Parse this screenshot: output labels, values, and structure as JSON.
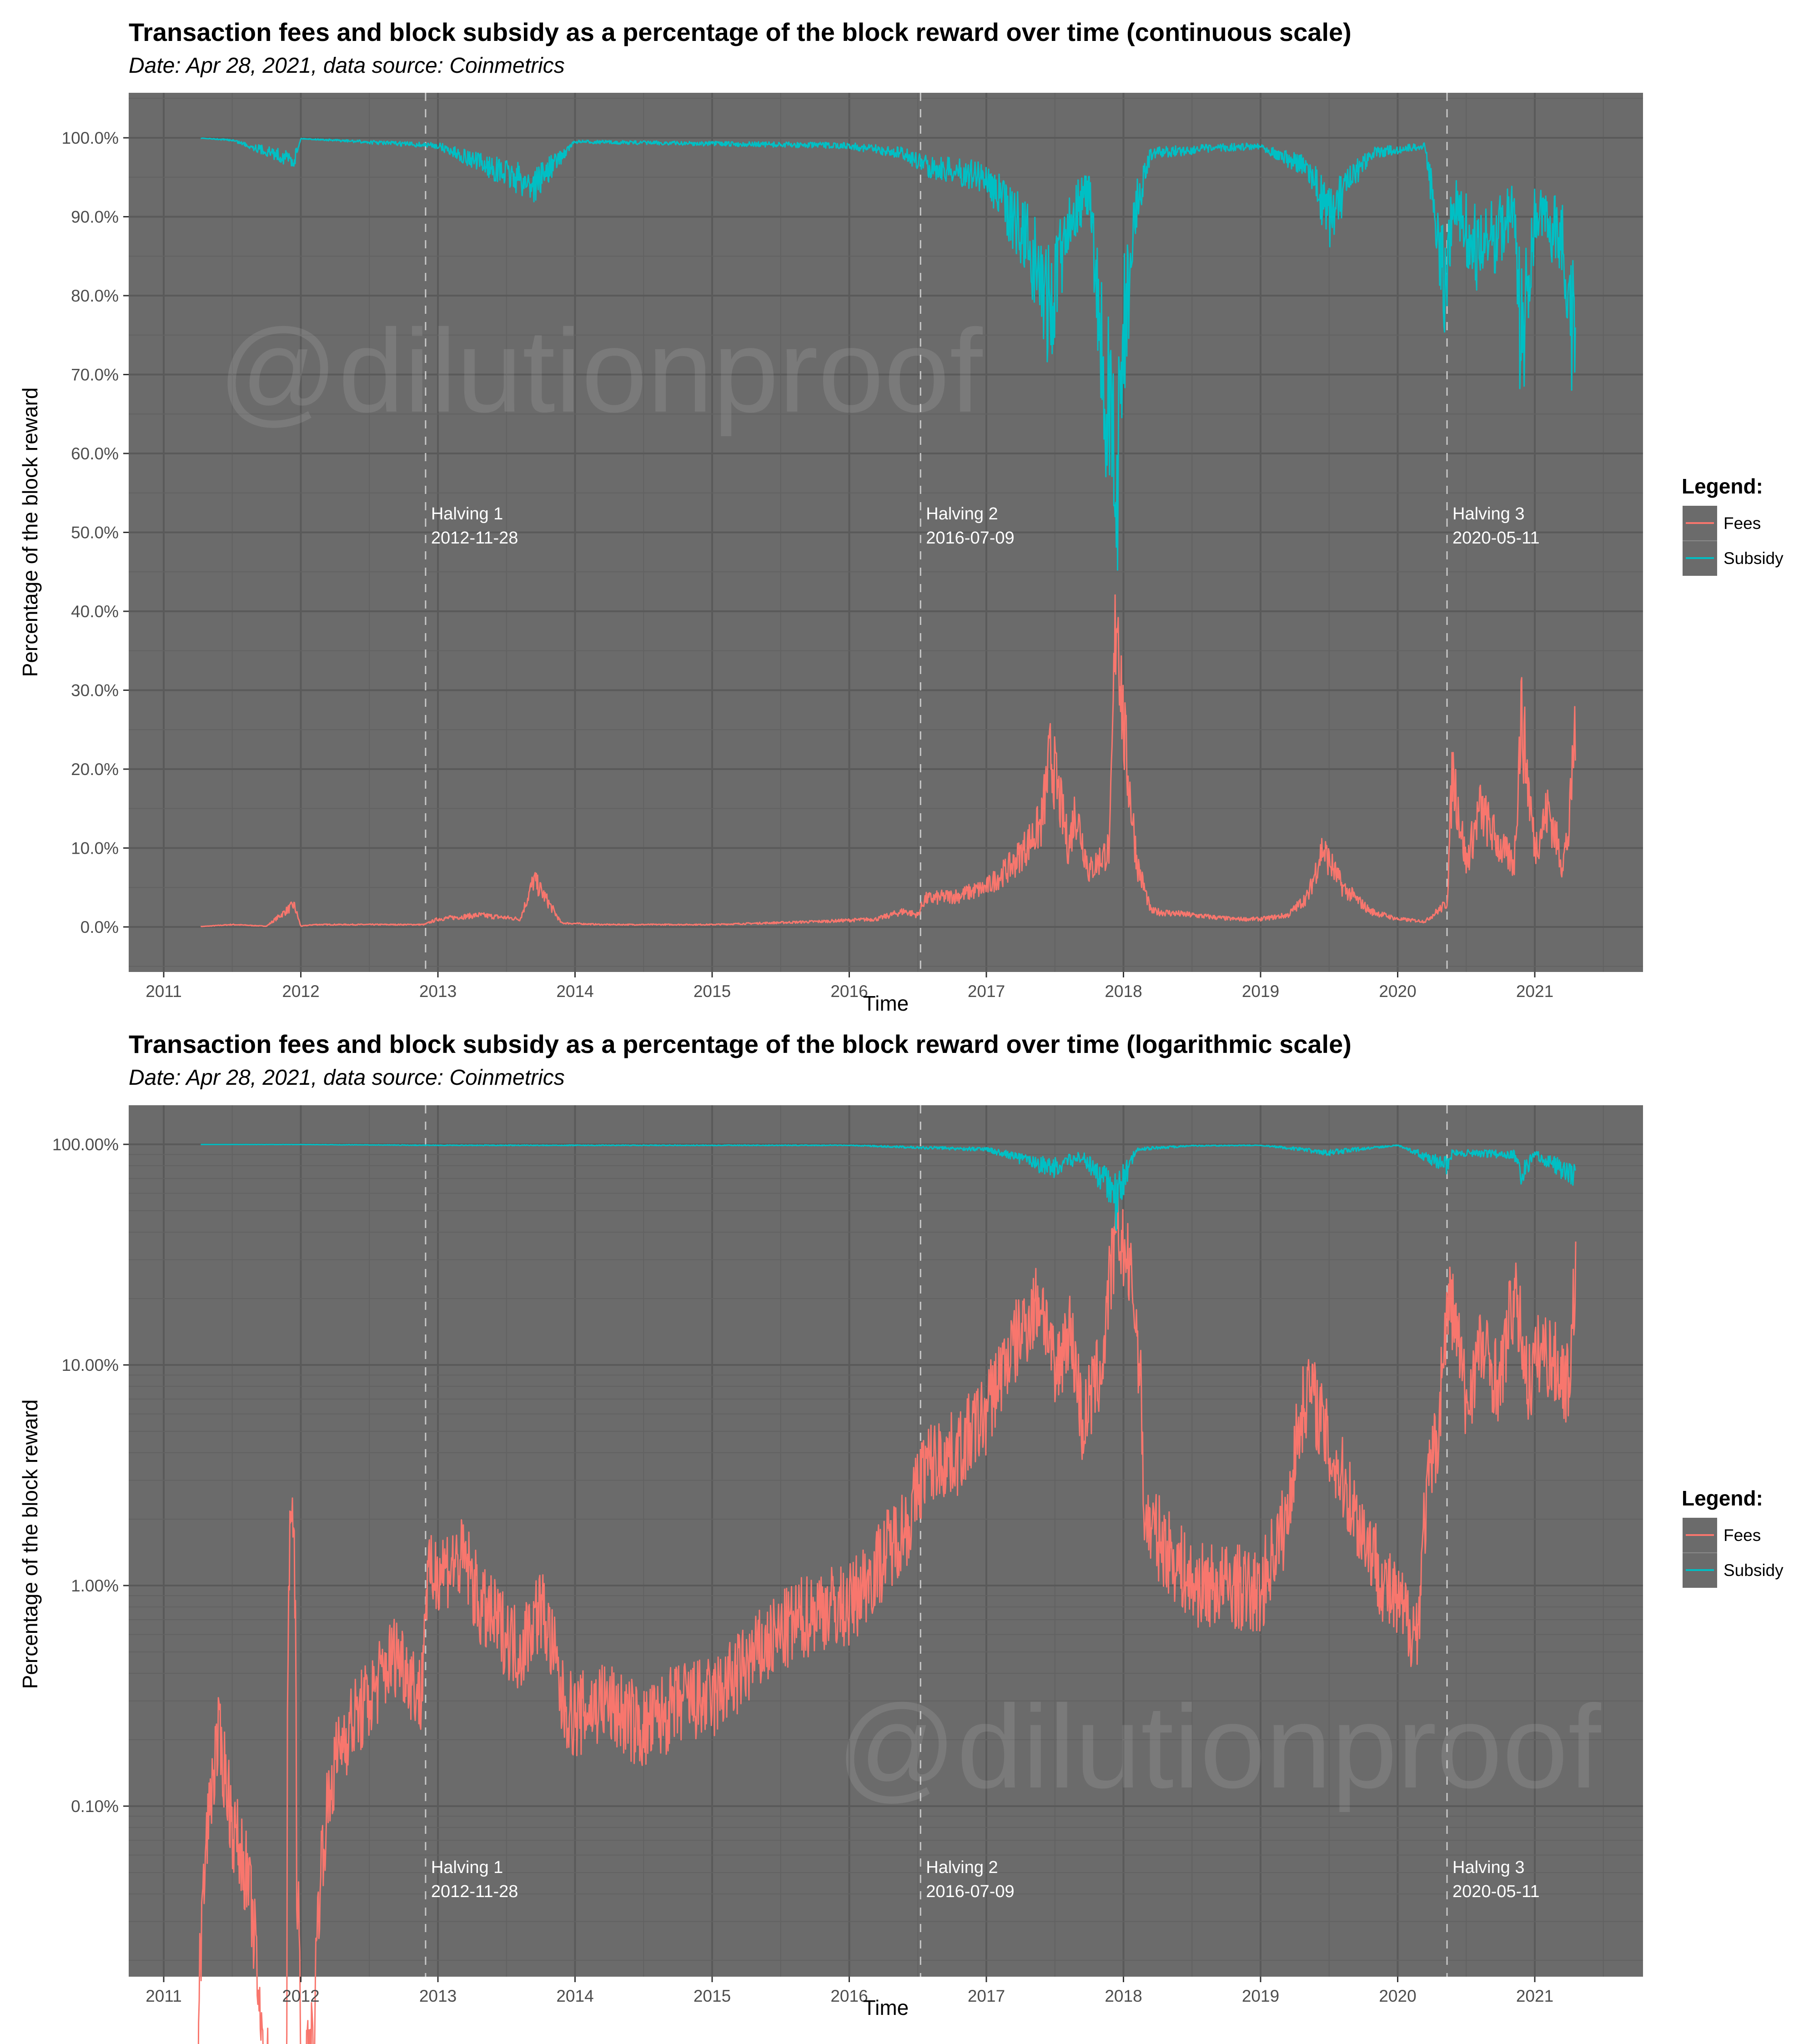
{
  "colors": {
    "panel_bg": "#6b6b6b",
    "grid_major": "#5a5a5a",
    "grid_minor": "#626262",
    "fees": "#f8766d",
    "subsidy": "#00bfc4",
    "halving_line": "#c8c8c8",
    "annotation_text": "#ffffff"
  },
  "watermark": "@dilutionproof",
  "legend": {
    "title": "Legend:",
    "items": [
      {
        "label": "Fees",
        "color": "#f8766d"
      },
      {
        "label": "Subsidy",
        "color": "#00bfc4"
      }
    ]
  },
  "chart_data": [
    {
      "type": "line",
      "title": "Transaction fees and block subsidy as a percentage of the block reward over time (continuous scale)",
      "subtitle": "Date: Apr 28, 2021, data source: Coinmetrics",
      "xlabel": "Time",
      "ylabel": "Percentage of the block reward",
      "x_ticks": [
        "2011",
        "2012",
        "2013",
        "2014",
        "2015",
        "2016",
        "2017",
        "2018",
        "2019",
        "2020",
        "2021"
      ],
      "y_ticks": [
        "0.0%",
        "10.0%",
        "20.0%",
        "30.0%",
        "40.0%",
        "50.0%",
        "60.0%",
        "70.0%",
        "80.0%",
        "90.0%",
        "100.0%"
      ],
      "y_scale": "linear",
      "ylim": [
        -5,
        105
      ],
      "xlim": [
        2010.75,
        2021.8
      ],
      "grid": true,
      "legend_position": "right",
      "annotations": [
        {
          "label": "Halving 1",
          "date": "2012-11-28",
          "x": 2012.91
        },
        {
          "label": "Halving 2",
          "date": "2016-07-09",
          "x": 2016.52
        },
        {
          "label": "Halving 3",
          "date": "2020-05-11",
          "x": 2020.36
        }
      ],
      "series": [
        {
          "name": "Fees",
          "x": [
            2011.27,
            2011.5,
            2011.75,
            2011.95,
            2012.0,
            2012.1,
            2012.5,
            2012.9,
            2013.0,
            2013.3,
            2013.6,
            2013.7,
            2013.9,
            2014.2,
            2014.6,
            2015.0,
            2015.4,
            2015.8,
            2016.2,
            2016.4,
            2016.5,
            2016.55,
            2016.8,
            2017.0,
            2017.2,
            2017.4,
            2017.47,
            2017.6,
            2017.65,
            2017.75,
            2017.9,
            2017.95,
            2018.0,
            2018.1,
            2018.2,
            2018.5,
            2018.8,
            2019.0,
            2019.2,
            2019.35,
            2019.45,
            2019.6,
            2019.8,
            2020.0,
            2020.2,
            2020.36,
            2020.4,
            2020.5,
            2020.6,
            2020.75,
            2020.85,
            2020.9,
            2021.0,
            2021.1,
            2021.2,
            2021.25,
            2021.3
          ],
          "values": [
            0.05,
            0.3,
            0.1,
            2.8,
            0.1,
            0.3,
            0.3,
            0.3,
            1.0,
            1.5,
            1.0,
            6.0,
            0.5,
            0.3,
            0.3,
            0.3,
            0.5,
            0.7,
            1.0,
            2.0,
            1.5,
            3.5,
            4.0,
            5.0,
            8.0,
            13.0,
            22.0,
            10.0,
            15.0,
            7.0,
            10.0,
            43.0,
            25.0,
            8.0,
            2.0,
            1.5,
            1.0,
            1.0,
            1.5,
            4.0,
            10.0,
            5.0,
            2.0,
            1.0,
            0.7,
            3.0,
            20.0,
            8.0,
            15.0,
            10.0,
            8.0,
            27.0,
            10.0,
            15.0,
            8.0,
            12.0,
            28.0
          ]
        },
        {
          "name": "Subsidy",
          "x": [
            2011.27,
            2011.5,
            2011.95,
            2012.0,
            2013.0,
            2013.7,
            2014.0,
            2016.0,
            2016.4,
            2016.55,
            2017.0,
            2017.3,
            2017.47,
            2017.6,
            2017.75,
            2017.88,
            2017.95,
            2018.0,
            2018.1,
            2018.2,
            2018.5,
            2019.0,
            2019.35,
            2019.5,
            2019.8,
            2020.2,
            2020.36,
            2020.4,
            2020.6,
            2020.85,
            2020.9,
            2021.0,
            2021.2,
            2021.3
          ],
          "values": [
            99.95,
            99.7,
            97.2,
            99.9,
            99.0,
            94.0,
            99.5,
            99.0,
            98.0,
            96.5,
            95.0,
            87.0,
            78.0,
            90.0,
            93.0,
            63.0,
            57.0,
            75.0,
            92.0,
            98.0,
            98.5,
            99.0,
            96.0,
            90.0,
            98.0,
            99.0,
            80.0,
            92.0,
            85.0,
            91.0,
            73.0,
            90.0,
            88.0,
            72.0
          ]
        }
      ]
    },
    {
      "type": "line",
      "title": "Transaction fees and block subsidy as a percentage of the block reward over time (logarithmic scale)",
      "subtitle": "Date: Apr 28, 2021, data source: Coinmetrics",
      "xlabel": "Time",
      "ylabel": "Percentage of the block reward",
      "x_ticks": [
        "2011",
        "2012",
        "2013",
        "2014",
        "2015",
        "2016",
        "2017",
        "2018",
        "2019",
        "2020",
        "2021"
      ],
      "y_ticks": [
        "0.10%",
        "1.00%",
        "10.00%",
        "100.00%"
      ],
      "y_scale": "log10",
      "ylim": [
        0.0018,
        160
      ],
      "xlim": [
        2010.75,
        2021.8
      ],
      "grid": true,
      "legend_position": "right",
      "annotations": [
        {
          "label": "Halving 1",
          "date": "2012-11-28",
          "x": 2012.91
        },
        {
          "label": "Halving 2",
          "date": "2016-07-09",
          "x": 2016.52
        },
        {
          "label": "Halving 3",
          "date": "2020-05-11",
          "x": 2020.36
        }
      ],
      "series": [
        {
          "name": "Fees",
          "x": [
            2011.25,
            2011.3,
            2011.4,
            2011.5,
            2011.6,
            2011.7,
            2011.8,
            2011.9,
            2011.93,
            2011.97,
            2012.0,
            2012.1,
            2012.2,
            2012.3,
            2012.5,
            2012.7,
            2012.88,
            2012.92,
            2013.0,
            2013.2,
            2013.3,
            2013.5,
            2013.6,
            2013.75,
            2013.9,
            2014.0,
            2014.2,
            2014.5,
            2014.8,
            2015.0,
            2015.2,
            2015.5,
            2015.8,
            2016.0,
            2016.2,
            2016.45,
            2016.55,
            2016.8,
            2017.0,
            2017.2,
            2017.4,
            2017.5,
            2017.6,
            2017.7,
            2017.85,
            2017.96,
            2018.05,
            2018.15,
            2018.3,
            2018.5,
            2018.8,
            2019.0,
            2019.2,
            2019.35,
            2019.5,
            2019.7,
            2019.9,
            2020.0,
            2020.15,
            2020.3,
            2020.38,
            2020.5,
            2020.6,
            2020.75,
            2020.85,
            2020.95,
            2021.05,
            2021.15,
            2021.25,
            2021.3
          ],
          "values": [
            0.005,
            0.05,
            0.2,
            0.08,
            0.05,
            0.01,
            0.004,
            0.006,
            2.5,
            0.05,
            0.004,
            0.01,
            0.1,
            0.2,
            0.3,
            0.5,
            0.3,
            1.0,
            1.2,
            1.3,
            0.8,
            0.6,
            0.5,
            0.8,
            0.3,
            0.25,
            0.3,
            0.22,
            0.3,
            0.3,
            0.4,
            0.6,
            0.8,
            0.8,
            1.2,
            2.0,
            3.5,
            4.0,
            6.0,
            12.0,
            20.0,
            8.0,
            15.0,
            5.0,
            10.0,
            40.0,
            25.0,
            2.0,
            1.5,
            1.0,
            1.0,
            0.9,
            2.0,
            8.0,
            4.0,
            2.0,
            1.0,
            0.8,
            0.6,
            5.0,
            20.0,
            6.0,
            12.0,
            8.0,
            20.0,
            8.0,
            12.0,
            10.0,
            8.0,
            25.0
          ]
        },
        {
          "name": "Subsidy",
          "x": [
            2011.27,
            2012.0,
            2013.0,
            2016.0,
            2016.55,
            2017.0,
            2017.47,
            2017.7,
            2017.9,
            2017.95,
            2018.1,
            2018.5,
            2019.0,
            2019.5,
            2020.0,
            2020.36,
            2020.4,
            2020.85,
            2020.9,
            2021.0,
            2021.3
          ],
          "values": [
            99.9,
            99.8,
            99.0,
            99.0,
            96.5,
            95.0,
            78.0,
            88.0,
            63.0,
            57.0,
            95.0,
            98.5,
            99.0,
            92.0,
            99.0,
            80.0,
            92.0,
            90.0,
            73.0,
            90.0,
            72.0
          ]
        }
      ]
    }
  ]
}
